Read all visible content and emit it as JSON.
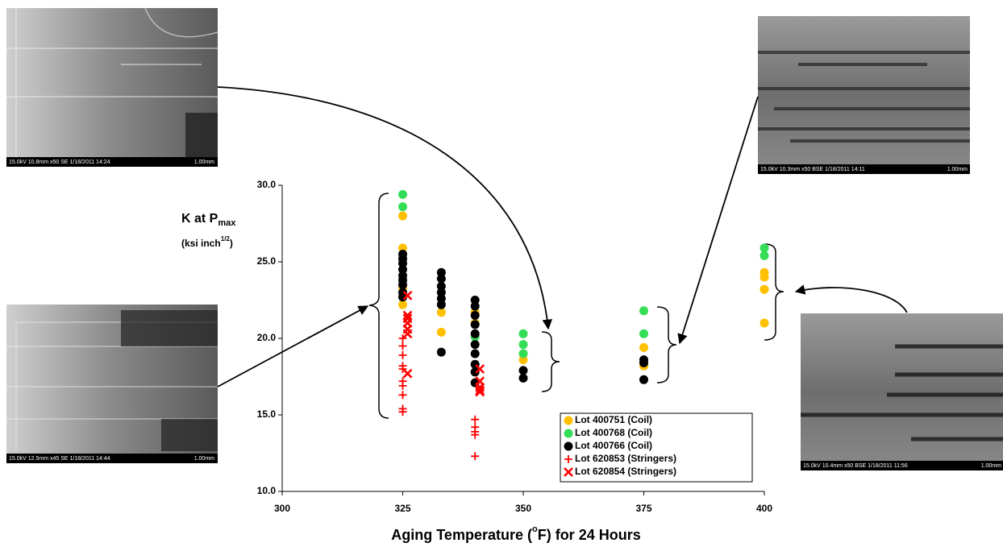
{
  "chart_data": {
    "type": "scatter",
    "ylabel": [
      "K at P",
      "max"
    ],
    "ylabel_unit": [
      "(ksi inch",
      "1/2",
      ")"
    ],
    "xlabel": [
      "Aging Temperature (",
      "o",
      "F) for 24 Hours"
    ],
    "xlim": [
      300,
      400
    ],
    "xticks": [
      300,
      325,
      350,
      375,
      400
    ],
    "ylim": [
      10,
      30
    ],
    "yticks": [
      {
        "value": 10,
        "label": "10.0"
      },
      {
        "value": 15,
        "label": "15.0"
      },
      {
        "value": 20,
        "label": "20.0"
      },
      {
        "value": 25,
        "label": "25.0"
      },
      {
        "value": 30,
        "label": "30.0"
      }
    ],
    "grid": false,
    "legend": "bottom-right",
    "series": [
      {
        "name": "Lot 400751 (Coil)",
        "color": "#ffc000",
        "marker": "circle",
        "x": [
          325,
          325,
          325,
          325,
          333,
          333,
          340,
          340,
          350,
          350,
          375,
          375,
          400,
          400,
          400,
          400
        ],
        "values": [
          28.0,
          25.9,
          23.3,
          22.2,
          21.7,
          20.4,
          21.7,
          21.0,
          19.0,
          18.6,
          19.4,
          18.2,
          24.3,
          24.0,
          23.2,
          21.0
        ]
      },
      {
        "name": "Lot 400768 (Coil)",
        "color": "#33dd55",
        "marker": "circle",
        "x": [
          325,
          325,
          340,
          350,
          350,
          350,
          375,
          375,
          400,
          400
        ],
        "values": [
          29.4,
          28.6,
          20.1,
          20.3,
          19.6,
          19.0,
          21.8,
          20.3,
          25.9,
          25.4
        ]
      },
      {
        "name": "Lot 400766 (Coil)",
        "color": "#000000",
        "marker": "circle",
        "x": [
          325,
          325,
          325,
          325,
          325,
          325,
          325,
          325,
          325,
          333,
          333,
          333,
          333,
          333,
          333,
          333,
          340,
          340,
          340,
          340,
          340,
          340,
          340,
          340,
          340,
          340,
          350,
          350,
          375,
          375,
          375
        ],
        "values": [
          25.5,
          25.2,
          24.9,
          24.5,
          24.1,
          23.8,
          23.5,
          23.0,
          22.7,
          24.3,
          23.9,
          23.4,
          23.0,
          22.6,
          22.2,
          19.1,
          22.5,
          22.1,
          21.5,
          20.9,
          20.3,
          19.6,
          19.0,
          18.3,
          17.8,
          17.1,
          17.9,
          17.4,
          18.6,
          18.4,
          17.3
        ]
      },
      {
        "name": "Lot 620853 (Stringers)",
        "color": "#ff0000",
        "marker": "plus",
        "x": [
          325,
          325,
          325,
          325,
          325,
          325,
          325,
          325,
          325,
          325,
          340,
          340,
          340,
          340,
          340
        ],
        "values": [
          20.0,
          19.5,
          18.9,
          18.2,
          18.0,
          17.2,
          16.9,
          16.3,
          15.4,
          15.2,
          14.7,
          14.2,
          13.9,
          13.7,
          12.3
        ]
      },
      {
        "name": "Lot 620854 (Stringers)",
        "color": "#ff0000",
        "marker": "cross",
        "x": [
          326,
          326,
          326,
          326,
          326,
          326,
          326,
          341,
          341,
          341,
          341,
          341
        ],
        "values": [
          22.8,
          21.5,
          21.3,
          21.0,
          20.6,
          20.3,
          17.7,
          18.0,
          17.2,
          16.8,
          16.6,
          16.5
        ]
      }
    ]
  },
  "micrographs": [
    {
      "caption": "15.0kV 10.8mm x50 SE  1/18/2011 14:24",
      "scale": "1.00mm"
    },
    {
      "caption": "15.0kV 12.5mm x45 SE  1/18/2011 14:44",
      "scale": "1.00mm"
    },
    {
      "caption": "15.0kV 10.3mm x50 BSE  1/18/2011 14:11",
      "scale": "1.00mm"
    },
    {
      "caption": "15.0kV 10.4mm x50 BSE  1/18/2011 11:56",
      "scale": "1.00mm"
    }
  ]
}
